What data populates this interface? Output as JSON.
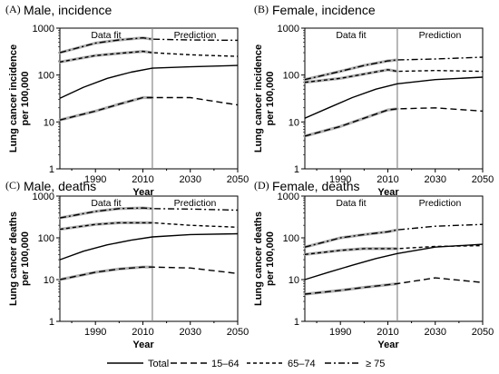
{
  "chart_data": [
    {
      "type": "line",
      "panel_label": "(A)",
      "title": "Male, incidence",
      "xlabel": "Year",
      "ylabel": "Lung cancer incidence per 100,000",
      "xlim": [
        1975,
        2050
      ],
      "ylim": [
        1,
        1000
      ],
      "yscale": "log",
      "xticks": [
        1990,
        2010,
        2030,
        2050
      ],
      "yticks": [
        1,
        10,
        100,
        1000
      ],
      "split_year": 2014,
      "regions": [
        "Data fit",
        "Prediction"
      ],
      "series": [
        {
          "name": "Total",
          "x": [
            1975,
            1985,
            1995,
            2005,
            2014,
            2030,
            2050
          ],
          "y": [
            32,
            55,
            85,
            115,
            140,
            150,
            160
          ]
        },
        {
          "name": "15–64",
          "x": [
            1975,
            1990,
            2000,
            2010,
            2014,
            2030,
            2050
          ],
          "y": [
            11,
            17,
            24,
            33,
            33,
            33,
            23
          ]
        },
        {
          "name": "65–74",
          "x": [
            1975,
            1990,
            2000,
            2010,
            2014,
            2030,
            2050
          ],
          "y": [
            190,
            260,
            290,
            320,
            300,
            270,
            250
          ]
        },
        {
          "name": "≥ 75",
          "x": [
            1975,
            1990,
            2000,
            2010,
            2014,
            2030,
            2050
          ],
          "y": [
            300,
            480,
            560,
            620,
            580,
            560,
            550
          ]
        }
      ]
    },
    {
      "type": "line",
      "panel_label": "(B)",
      "title": "Female, incidence",
      "xlabel": "Year",
      "ylabel": "Lung cancer incidence per 100,000",
      "xlim": [
        1975,
        2050
      ],
      "ylim": [
        1,
        1000
      ],
      "yscale": "log",
      "xticks": [
        1990,
        2010,
        2030,
        2050
      ],
      "yticks": [
        1,
        10,
        100,
        1000
      ],
      "split_year": 2014,
      "regions": [
        "Data fit",
        "Prediction"
      ],
      "series": [
        {
          "name": "Total",
          "x": [
            1975,
            1985,
            1995,
            2005,
            2014,
            2030,
            2050
          ],
          "y": [
            12,
            20,
            33,
            50,
            65,
            80,
            90
          ]
        },
        {
          "name": "15–64",
          "x": [
            1975,
            1990,
            2000,
            2010,
            2014,
            2030,
            2050
          ],
          "y": [
            5,
            8,
            12,
            18,
            19,
            20,
            17
          ]
        },
        {
          "name": "65–74",
          "x": [
            1975,
            1990,
            2000,
            2010,
            2014,
            2030,
            2050
          ],
          "y": [
            70,
            85,
            105,
            130,
            120,
            125,
            120
          ]
        },
        {
          "name": "≥ 75",
          "x": [
            1975,
            1990,
            2000,
            2010,
            2014,
            2030,
            2050
          ],
          "y": [
            80,
            120,
            160,
            200,
            210,
            220,
            240
          ]
        }
      ]
    },
    {
      "type": "line",
      "panel_label": "(C)",
      "title": "Male, deaths",
      "xlabel": "Year",
      "ylabel": "Lung cancer deaths per 100,000",
      "xlim": [
        1975,
        2050
      ],
      "ylim": [
        1,
        1000
      ],
      "yscale": "log",
      "xticks": [
        1990,
        2010,
        2030,
        2050
      ],
      "yticks": [
        1,
        10,
        100,
        1000
      ],
      "split_year": 2014,
      "regions": [
        "Data fit",
        "Prediction"
      ],
      "series": [
        {
          "name": "Total",
          "x": [
            1975,
            1985,
            1995,
            2005,
            2014,
            2030,
            2050
          ],
          "y": [
            30,
            48,
            68,
            88,
            105,
            120,
            125
          ]
        },
        {
          "name": "15–64",
          "x": [
            1975,
            1990,
            2000,
            2010,
            2014,
            2030,
            2050
          ],
          "y": [
            10,
            15,
            18,
            20,
            20,
            19,
            14
          ]
        },
        {
          "name": "65–74",
          "x": [
            1975,
            1990,
            2000,
            2010,
            2014,
            2030,
            2050
          ],
          "y": [
            160,
            210,
            230,
            230,
            230,
            200,
            180
          ]
        },
        {
          "name": "≥ 75",
          "x": [
            1975,
            1990,
            2000,
            2010,
            2014,
            2030,
            2050
          ],
          "y": [
            300,
            430,
            500,
            520,
            500,
            490,
            460
          ]
        }
      ]
    },
    {
      "type": "line",
      "panel_label": "(D)",
      "title": "Female, deaths",
      "xlabel": "Year",
      "ylabel": "Lung cancer deaths per 100,000",
      "xlim": [
        1975,
        2050
      ],
      "ylim": [
        1,
        1000
      ],
      "yscale": "log",
      "xticks": [
        1990,
        2010,
        2030,
        2050
      ],
      "yticks": [
        1,
        10,
        100,
        1000
      ],
      "split_year": 2014,
      "regions": [
        "Data fit",
        "Prediction"
      ],
      "series": [
        {
          "name": "Total",
          "x": [
            1975,
            1985,
            1995,
            2005,
            2014,
            2030,
            2050
          ],
          "y": [
            10,
            15,
            22,
            32,
            42,
            60,
            70
          ]
        },
        {
          "name": "15–64",
          "x": [
            1975,
            1990,
            2000,
            2010,
            2014,
            2030,
            2050
          ],
          "y": [
            4.5,
            5.5,
            6.5,
            7.5,
            8,
            11,
            8.5
          ]
        },
        {
          "name": "65–74",
          "x": [
            1975,
            1990,
            2000,
            2010,
            2014,
            2030,
            2050
          ],
          "y": [
            40,
            50,
            55,
            55,
            55,
            62,
            65
          ]
        },
        {
          "name": "≥ 75",
          "x": [
            1975,
            1990,
            2000,
            2010,
            2014,
            2030,
            2050
          ],
          "y": [
            60,
            100,
            120,
            140,
            155,
            190,
            210
          ]
        }
      ]
    }
  ],
  "legend": {
    "items": [
      {
        "label": "Total"
      },
      {
        "label": "15–64"
      },
      {
        "label": "65–74"
      },
      {
        "label": "≥ 75"
      }
    ]
  },
  "colors": {
    "line": "#000000",
    "observed": "#aaaaaa",
    "axis": "#000000",
    "divider": "#888888",
    "background": "#ffffff"
  }
}
